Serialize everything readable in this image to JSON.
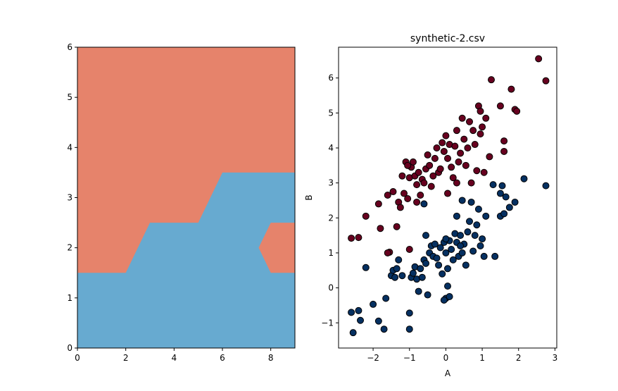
{
  "chart_data": [
    {
      "type": "area",
      "title": "",
      "xlabel": "",
      "ylabel": "",
      "xlim": [
        0,
        9
      ],
      "ylim": [
        0,
        6
      ],
      "xticks": [
        "0",
        "2",
        "4",
        "6",
        "8"
      ],
      "yticks": [
        "0",
        "1",
        "2",
        "3",
        "4",
        "5",
        "6"
      ],
      "grid": false,
      "background_color": "#e6836b",
      "region_color": "#67aad0",
      "regions": [
        {
          "name": "",
          "boundary": [
            [
              0,
              0
            ],
            [
              0,
              1.5
            ],
            [
              2,
              1.5
            ],
            [
              3,
              2.5
            ],
            [
              5,
              2.5
            ],
            [
              6,
              3.5
            ],
            [
              9,
              3.5
            ],
            [
              9,
              2.5
            ],
            [
              8,
              2.5
            ],
            [
              7.5,
              2.0
            ],
            [
              8,
              1.5
            ],
            [
              9,
              1.5
            ],
            [
              9,
              0
            ]
          ]
        }
      ]
    },
    {
      "type": "scatter",
      "title": "synthetic-2.csv",
      "xlabel": "A",
      "ylabel": "B",
      "xlim": [
        -2.95,
        3.05
      ],
      "ylim": [
        -1.72,
        6.88
      ],
      "xticks": [
        "−2",
        "−1",
        "0",
        "1",
        "2",
        "3"
      ],
      "yticks": [
        "−1",
        "0",
        "1",
        "2",
        "3",
        "4",
        "5",
        "6"
      ],
      "grid": false,
      "series": [
        {
          "color": "#67001f",
          "points": [
            [
              -2.6,
              1.42
            ],
            [
              -2.4,
              1.44
            ],
            [
              -2.2,
              2.05
            ],
            [
              -1.85,
              2.4
            ],
            [
              -1.8,
              1.7
            ],
            [
              -1.6,
              2.65
            ],
            [
              -1.55,
              1.02
            ],
            [
              -1.45,
              2.75
            ],
            [
              -1.35,
              1.75
            ],
            [
              -1.3,
              2.45
            ],
            [
              -1.25,
              2.3
            ],
            [
              -1.2,
              3.2
            ],
            [
              -1.15,
              2.7
            ],
            [
              -1.1,
              3.6
            ],
            [
              -1.05,
              2.55
            ],
            [
              -1.0,
              3.15
            ],
            [
              -0.95,
              3.45
            ],
            [
              -0.9,
              3.6
            ],
            [
              -0.85,
              3.2
            ],
            [
              -0.8,
              2.95
            ],
            [
              -0.75,
              3.3
            ],
            [
              -0.7,
              2.65
            ],
            [
              -0.65,
              3.1
            ],
            [
              -0.6,
              3.0
            ],
            [
              -0.55,
              3.4
            ],
            [
              -0.5,
              3.8
            ],
            [
              -0.45,
              3.5
            ],
            [
              -0.4,
              2.9
            ],
            [
              -0.35,
              3.2
            ],
            [
              -0.3,
              3.7
            ],
            [
              -0.25,
              4.0
            ],
            [
              -0.2,
              3.3
            ],
            [
              -0.15,
              3.4
            ],
            [
              -0.1,
              4.15
            ],
            [
              -0.05,
              3.9
            ],
            [
              0.0,
              4.35
            ],
            [
              0.05,
              3.7
            ],
            [
              0.1,
              4.1
            ],
            [
              0.15,
              3.45
            ],
            [
              0.2,
              3.15
            ],
            [
              0.25,
              4.05
            ],
            [
              0.3,
              4.5
            ],
            [
              0.35,
              3.6
            ],
            [
              0.4,
              3.85
            ],
            [
              0.45,
              4.85
            ],
            [
              0.5,
              4.25
            ],
            [
              0.55,
              3.5
            ],
            [
              0.6,
              4.0
            ],
            [
              0.65,
              4.75
            ],
            [
              0.7,
              3.0
            ],
            [
              0.75,
              4.5
            ],
            [
              0.8,
              4.1
            ],
            [
              0.85,
              3.35
            ],
            [
              0.9,
              5.2
            ],
            [
              0.95,
              5.05
            ],
            [
              1.0,
              4.6
            ],
            [
              1.05,
              3.3
            ],
            [
              1.1,
              4.85
            ],
            [
              1.2,
              3.75
            ],
            [
              1.25,
              5.95
            ],
            [
              1.5,
              5.2
            ],
            [
              1.6,
              4.2
            ],
            [
              1.6,
              3.9
            ],
            [
              1.8,
              5.68
            ],
            [
              1.9,
              5.1
            ],
            [
              1.95,
              5.05
            ],
            [
              2.55,
              6.55
            ],
            [
              2.75,
              5.92
            ],
            [
              -1.6,
              1.0
            ],
            [
              -1.0,
              1.1
            ],
            [
              -0.8,
              2.45
            ],
            [
              0.05,
              2.7
            ],
            [
              0.3,
              3.0
            ],
            [
              -1.05,
              3.5
            ],
            [
              0.95,
              4.4
            ]
          ]
        },
        {
          "color": "#053061",
          "points": [
            [
              -2.6,
              -0.7
            ],
            [
              -2.55,
              -1.28
            ],
            [
              -2.4,
              -0.65
            ],
            [
              -2.35,
              -0.93
            ],
            [
              -2.2,
              0.58
            ],
            [
              -2.0,
              -0.47
            ],
            [
              -1.85,
              -0.95
            ],
            [
              -1.7,
              -1.18
            ],
            [
              -1.65,
              -0.3
            ],
            [
              -1.5,
              0.35
            ],
            [
              -1.45,
              0.5
            ],
            [
              -1.4,
              0.3
            ],
            [
              -1.35,
              0.55
            ],
            [
              -1.3,
              0.8
            ],
            [
              -1.2,
              0.35
            ],
            [
              -1.0,
              -0.72
            ],
            [
              -1.0,
              -1.18
            ],
            [
              -0.95,
              0.3
            ],
            [
              -0.9,
              0.42
            ],
            [
              -0.85,
              0.6
            ],
            [
              -0.8,
              0.25
            ],
            [
              -0.75,
              -0.1
            ],
            [
              -0.7,
              0.55
            ],
            [
              -0.65,
              0.3
            ],
            [
              -0.6,
              0.8
            ],
            [
              -0.55,
              0.7
            ],
            [
              -0.5,
              -0.2
            ],
            [
              -0.45,
              1.0
            ],
            [
              -0.4,
              1.2
            ],
            [
              -0.35,
              0.9
            ],
            [
              -0.3,
              1.25
            ],
            [
              -0.25,
              0.85
            ],
            [
              -0.2,
              0.65
            ],
            [
              -0.15,
              1.15
            ],
            [
              -0.1,
              0.4
            ],
            [
              -0.05,
              1.3
            ],
            [
              0.0,
              1.0
            ],
            [
              0.05,
              0.55
            ],
            [
              0.1,
              1.35
            ],
            [
              0.15,
              1.1
            ],
            [
              0.2,
              0.8
            ],
            [
              0.25,
              1.55
            ],
            [
              0.3,
              1.3
            ],
            [
              0.35,
              0.9
            ],
            [
              0.4,
              1.5
            ],
            [
              0.45,
              1.0
            ],
            [
              0.5,
              1.25
            ],
            [
              0.55,
              0.65
            ],
            [
              0.6,
              1.6
            ],
            [
              0.65,
              1.9
            ],
            [
              0.7,
              2.45
            ],
            [
              0.75,
              1.05
            ],
            [
              0.8,
              1.5
            ],
            [
              0.85,
              1.8
            ],
            [
              0.9,
              2.25
            ],
            [
              0.95,
              1.2
            ],
            [
              1.0,
              1.4
            ],
            [
              1.05,
              0.9
            ],
            [
              1.1,
              2.05
            ],
            [
              1.3,
              2.95
            ],
            [
              1.35,
              0.9
            ],
            [
              1.5,
              2.7
            ],
            [
              1.5,
              2.05
            ],
            [
              1.55,
              2.92
            ],
            [
              1.6,
              2.12
            ],
            [
              1.65,
              2.6
            ],
            [
              1.75,
              2.3
            ],
            [
              1.9,
              2.45
            ],
            [
              2.15,
              3.12
            ],
            [
              2.75,
              2.92
            ],
            [
              0.0,
              -0.3
            ],
            [
              0.05,
              0.05
            ],
            [
              0.1,
              -0.25
            ],
            [
              -0.6,
              2.4
            ],
            [
              -0.55,
              1.5
            ],
            [
              0.3,
              2.05
            ],
            [
              0.45,
              2.5
            ],
            [
              0.0,
              1.4
            ],
            [
              0.4,
              1.2
            ],
            [
              -0.05,
              -0.35
            ]
          ]
        }
      ]
    }
  ]
}
